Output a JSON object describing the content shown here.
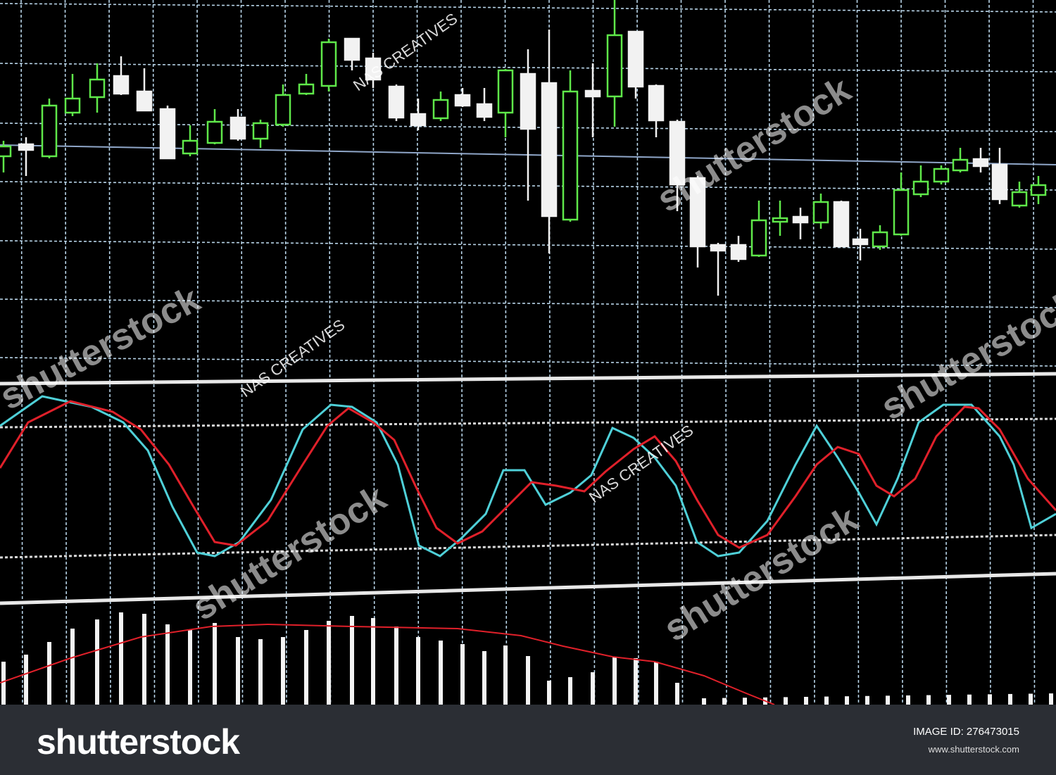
{
  "footer": {
    "logo": "shutterstock",
    "image_id": "IMAGE ID: 276473015",
    "site": "www.shutterstock.com"
  },
  "watermarks": {
    "brand": "shutterstock",
    "author": "NAS CREATIVES"
  }
}
